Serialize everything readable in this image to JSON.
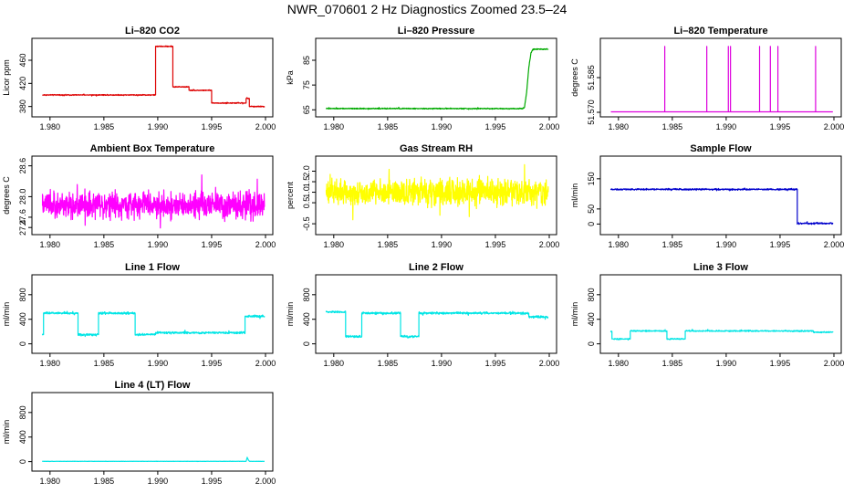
{
  "page": {
    "title": "NWR_070601  2 Hz Diagnostics Zoomed 23.5–24"
  },
  "chart_data": [
    {
      "type": "line",
      "title": "Li–820 CO2",
      "xlabel": "",
      "ylabel": "Licor ppm",
      "xlim": [
        1.979,
        2.0
      ],
      "ylim": [
        370,
        490
      ],
      "x_ticks": [
        "1.980",
        "1.985",
        "1.990",
        "1.995",
        "2.000"
      ],
      "y_ticks": [
        "380",
        "420",
        "460"
      ],
      "color": "#dd0000",
      "noise": 0.4,
      "series": [
        {
          "x": [
            1.9793,
            1.9898,
            1.9898,
            1.9914,
            1.9914,
            1.9929,
            1.9929,
            1.995,
            1.995,
            1.9982,
            1.9982,
            1.9985,
            1.9985,
            1.9999
          ],
          "y": [
            400,
            400,
            484,
            484,
            414,
            414,
            408,
            408,
            386,
            386,
            394,
            394,
            380,
            380
          ]
        }
      ]
    },
    {
      "type": "line",
      "title": "Li–820 Pressure",
      "xlabel": "",
      "ylabel": "kPa",
      "xlim": [
        1.979,
        2.0
      ],
      "ylim": [
        64,
        92
      ],
      "x_ticks": [
        "1.980",
        "1.985",
        "1.990",
        "1.995",
        "2.000"
      ],
      "y_ticks": [
        "65",
        "75",
        "85"
      ],
      "color": "#00aa00",
      "noise": 0.1,
      "series": [
        {
          "x": [
            1.9793,
            1.9975,
            1.9977,
            1.9979,
            1.9981,
            1.9983,
            1.9985,
            1.9999
          ],
          "y": [
            65.5,
            65.5,
            66,
            72,
            82,
            88,
            89.5,
            89.5
          ]
        }
      ]
    },
    {
      "type": "line",
      "title": "Li–820 Temperature",
      "xlabel": "",
      "ylabel": "degrees C",
      "xlim": [
        1.979,
        2.0
      ],
      "ylim": [
        51.57,
        51.6
      ],
      "x_ticks": [
        "1.980",
        "1.985",
        "1.990",
        "1.995",
        "2.000"
      ],
      "y_ticks": [
        "51.570",
        "51.585"
      ],
      "color": "#dd00dd",
      "noise": 0,
      "series": [
        {
          "x": [
            1.9793,
            1.9843,
            1.9843,
            1.9843,
            1.9843,
            1.9843,
            1.9882,
            1.9882,
            1.9882,
            1.9902,
            1.9902,
            1.9902,
            1.9902,
            1.9904,
            1.9904,
            1.9904,
            1.9931,
            1.9931,
            1.9931,
            1.9941,
            1.9941,
            1.9941,
            1.9948,
            1.9948,
            1.9948,
            1.9983,
            1.9983,
            1.9983,
            1.9999
          ],
          "y": [
            51.5702,
            51.5702,
            51.5985,
            51.585,
            51.5985,
            51.5702,
            51.5702,
            51.5985,
            51.5702,
            51.5702,
            51.5945,
            51.5985,
            51.5702,
            51.5702,
            51.5985,
            51.5702,
            51.5702,
            51.5985,
            51.5702,
            51.5702,
            51.5985,
            51.5702,
            51.5702,
            51.5985,
            51.5702,
            51.5702,
            51.5985,
            51.5702,
            51.5702
          ]
        }
      ]
    },
    {
      "type": "line",
      "title": "Ambient Box Temperature",
      "xlabel": "",
      "ylabel": "degrees C",
      "xlim": [
        1.979,
        2.0
      ],
      "ylim": [
        27.35,
        28.7
      ],
      "x_ticks": [
        "1.980",
        "1.985",
        "1.990",
        "1.995",
        "2.000"
      ],
      "y_ticks": [
        "27.4",
        "27.6",
        "28.0",
        "28.6"
      ],
      "color": "#ff00ff",
      "noise": 0.12,
      "series": [
        {
          "x": [
            1.9793,
            1.9999
          ],
          "y": [
            27.83,
            27.83
          ]
        }
      ]
    },
    {
      "type": "line",
      "title": "Gas Stream RH",
      "xlabel": "",
      "ylabel": "percent",
      "xlim": [
        1.979,
        2.0
      ],
      "ylim": [
        -0.8,
        2.5
      ],
      "x_ticks": [
        "1.980",
        "1.985",
        "1.990",
        "1.995",
        "2.000"
      ],
      "y_ticks": [
        "-0.5",
        "0.5",
        "1.0",
        "1.5",
        "2.0"
      ],
      "color": "#ffff00",
      "noise": 0.3,
      "series": [
        {
          "x": [
            1.9793,
            1.9999
          ],
          "y": [
            1.0,
            1.0
          ]
        }
      ]
    },
    {
      "type": "line",
      "title": "Sample Flow",
      "xlabel": "",
      "ylabel": "ml/min",
      "xlim": [
        1.979,
        2.0
      ],
      "ylim": [
        -20,
        210
      ],
      "x_ticks": [
        "1.980",
        "1.985",
        "1.990",
        "1.995",
        "2.000"
      ],
      "y_ticks": [
        "0",
        "50",
        "150"
      ],
      "color": "#0000cc",
      "noise": 1.2,
      "series": [
        {
          "x": [
            1.9793,
            1.9966,
            1.9966,
            1.9999
          ],
          "y": [
            115,
            115,
            2,
            2
          ]
        }
      ]
    },
    {
      "type": "line",
      "title": "Line 1 Flow",
      "xlabel": "",
      "ylabel": "ml/min",
      "xlim": [
        1.979,
        2.0
      ],
      "ylim": [
        -80,
        1050
      ],
      "x_ticks": [
        "1.980",
        "1.985",
        "1.990",
        "1.995",
        "2.000"
      ],
      "y_ticks": [
        "0",
        "400",
        "800"
      ],
      "color": "#00e5e5",
      "noise": 8,
      "series": [
        {
          "x": [
            1.9793,
            1.9794,
            1.9794,
            1.9826,
            1.9826,
            1.9845,
            1.9845,
            1.9879,
            1.9879,
            1.9898,
            1.9898,
            1.9981,
            1.9981,
            1.9999
          ],
          "y": [
            150,
            150,
            500,
            500,
            150,
            150,
            500,
            500,
            150,
            150,
            180,
            180,
            450,
            450
          ]
        }
      ]
    },
    {
      "type": "line",
      "title": "Line 2 Flow",
      "xlabel": "",
      "ylabel": "ml/min",
      "xlim": [
        1.979,
        2.0
      ],
      "ylim": [
        -80,
        1050
      ],
      "x_ticks": [
        "1.980",
        "1.985",
        "1.990",
        "1.995",
        "2.000"
      ],
      "y_ticks": [
        "0",
        "400",
        "800"
      ],
      "color": "#00e5e5",
      "noise": 8,
      "series": [
        {
          "x": [
            1.9793,
            1.9811,
            1.9811,
            1.9826,
            1.9826,
            1.9862,
            1.9862,
            1.9879,
            1.9879,
            1.9981,
            1.9981,
            1.9999
          ],
          "y": [
            520,
            520,
            120,
            120,
            500,
            500,
            120,
            120,
            500,
            500,
            440,
            440
          ]
        }
      ]
    },
    {
      "type": "line",
      "title": "Line 3 Flow",
      "xlabel": "",
      "ylabel": "ml/min",
      "xlim": [
        1.979,
        2.0
      ],
      "ylim": [
        -80,
        1050
      ],
      "x_ticks": [
        "1.980",
        "1.985",
        "1.990",
        "1.995",
        "2.000"
      ],
      "y_ticks": [
        "0",
        "400",
        "800"
      ],
      "color": "#00e5e5",
      "noise": 5,
      "series": [
        {
          "x": [
            1.9793,
            1.9794,
            1.9794,
            1.9811,
            1.9811,
            1.9845,
            1.9845,
            1.9862,
            1.9862,
            1.9981,
            1.9981,
            1.9999
          ],
          "y": [
            200,
            200,
            80,
            80,
            210,
            210,
            80,
            80,
            210,
            210,
            190,
            190
          ]
        }
      ]
    },
    {
      "type": "line",
      "title": "Line 4 (LT) Flow",
      "xlabel": "",
      "ylabel": "ml/min",
      "xlim": [
        1.979,
        2.0
      ],
      "ylim": [
        -80,
        1050
      ],
      "x_ticks": [
        "1.980",
        "1.985",
        "1.990",
        "1.995",
        "2.000"
      ],
      "y_ticks": [
        "0",
        "400",
        "800"
      ],
      "color": "#00e5e5",
      "noise": 1,
      "series": [
        {
          "x": [
            1.9793,
            1.9982,
            1.9983,
            1.9984,
            1.9985,
            1.9999
          ],
          "y": [
            5,
            5,
            70,
            30,
            5,
            5
          ]
        }
      ]
    }
  ]
}
